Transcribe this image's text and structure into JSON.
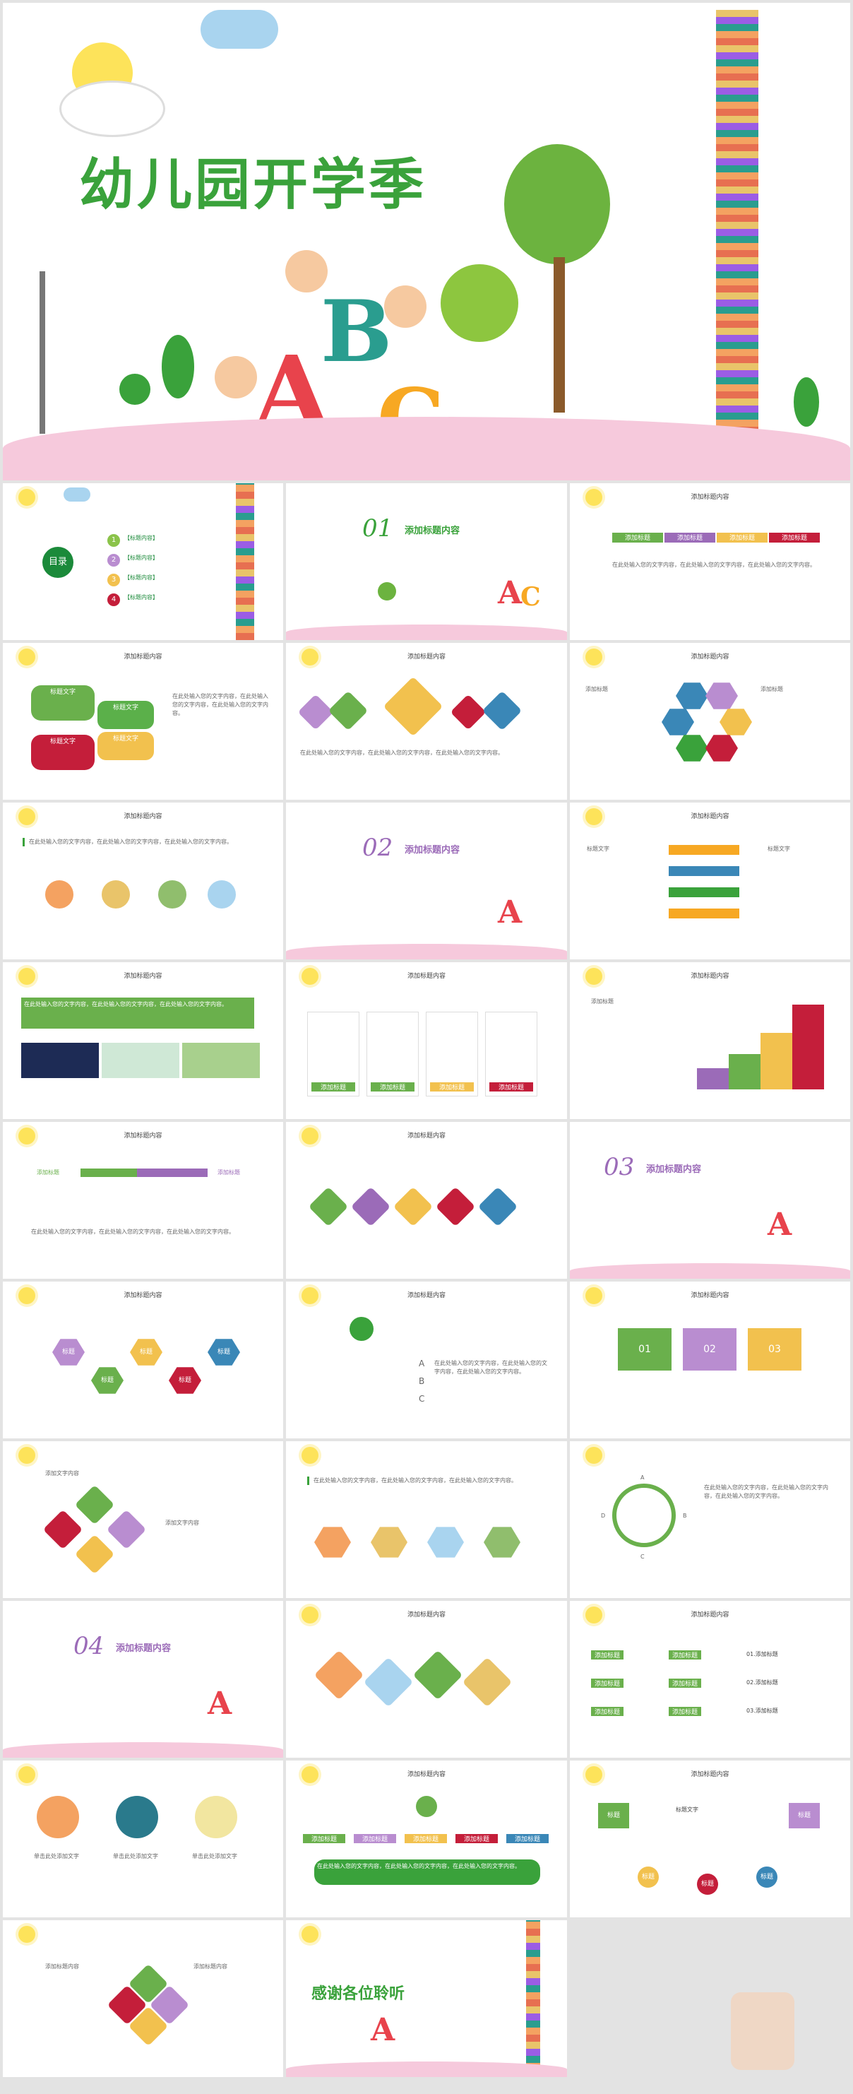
{
  "cover": {
    "title": "幼儿园开学季"
  },
  "toc": {
    "badge": "目录",
    "items": [
      {
        "num": "1",
        "label": "【标题内容】",
        "color": "#8bc34a"
      },
      {
        "num": "2",
        "label": "【标题内容】",
        "color": "#b98dd0"
      },
      {
        "num": "3",
        "label": "【标题内容】",
        "color": "#f2c14e"
      },
      {
        "num": "4",
        "label": "【标题内容】",
        "color": "#c41e3a"
      }
    ]
  },
  "common": {
    "slide_title": "添加标题内容",
    "add_title": "添加标题",
    "title_text": "标题文字",
    "title": "标题",
    "add_title_short": "添加标题",
    "text_content": "添加文字内容",
    "body": "在此处输入您的文字内容，在此处输入您的文字内容，在此处输入您的文字内容。"
  },
  "sections": [
    {
      "num": "01",
      "title": "添加标题内容"
    },
    {
      "num": "02",
      "title": "添加标题内容"
    },
    {
      "num": "03",
      "title": "添加标题内容"
    },
    {
      "num": "04",
      "title": "添加标题内容"
    }
  ],
  "arrows": [
    "添加标题",
    "添加标题",
    "添加标题",
    "添加标题"
  ],
  "puzzle": [
    "01",
    "02",
    "03"
  ],
  "letters": [
    "A",
    "B",
    "C"
  ],
  "abcd": [
    "A",
    "B",
    "C",
    "D"
  ],
  "org": {
    "left": [
      "添加标题",
      "添加标题",
      "添加标题"
    ],
    "mid": [
      "添加标题",
      "添加标题",
      "添加标题"
    ],
    "right": [
      "01.添加标题",
      "02.添加标题",
      "03.添加标题"
    ]
  },
  "people": {
    "caption": "单击此处添加文字"
  },
  "cycle": {
    "box": "标题",
    "text": "标题文字",
    "nodes": [
      "标题",
      "标题",
      "标题"
    ]
  },
  "closing": {
    "title": "感谢各位聆听"
  }
}
